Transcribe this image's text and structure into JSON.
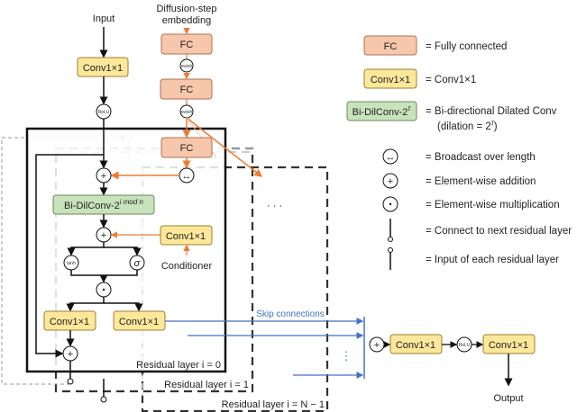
{
  "colors": {
    "fc_fill": "#f6c7ab",
    "fc_stroke": "#b07050",
    "conv_fill": "#fde79a",
    "conv_stroke": "#9a8030",
    "dil_fill": "#c8e3bb",
    "dil_stroke": "#6a8a5a",
    "orange": "#f07a30",
    "blue": "#4472c4",
    "dash": "#333333",
    "light_dash": "#bbbbbb"
  },
  "diagram": {
    "input_label": "Input",
    "embedding_label_1": "Diffusion-step",
    "embedding_label_2": "embedding",
    "fc": "FC",
    "conv": "Conv1×1",
    "relu": "ReLU",
    "swish": "swish",
    "tanh": "tanh",
    "sigma": "σ",
    "dilconv_base": "Bi-DilConv-2",
    "dilconv_sup": "i mod n",
    "conditioner": "Conditioner",
    "skip_label": "Skip connections",
    "layer0": "Residual layer i = 0",
    "layer1": "Residual layer i = 1",
    "layerN": "Residual layer i = N − 1",
    "output_label": "Output",
    "ellipsis": "· · ·",
    "vdots": "⋮"
  },
  "legend": {
    "fc_box": "FC",
    "fc_desc": "= Fully connected",
    "conv_box": "Conv1×1",
    "conv_desc": "= Conv1×1",
    "dil_box": "Bi-DilConv-2",
    "dil_sup": "τ",
    "dil_desc": "= Bi-directional Dilated Conv",
    "dil_desc2": "(dilation = 2",
    "dil_desc2_sup": "τ",
    "dil_desc2_end": ")",
    "broadcast": "= Broadcast over length",
    "add": "= Element-wise addition",
    "mult": "= Element-wise multiplication",
    "next": "= Connect to next residual layer",
    "input": "= Input of each residual layer"
  }
}
